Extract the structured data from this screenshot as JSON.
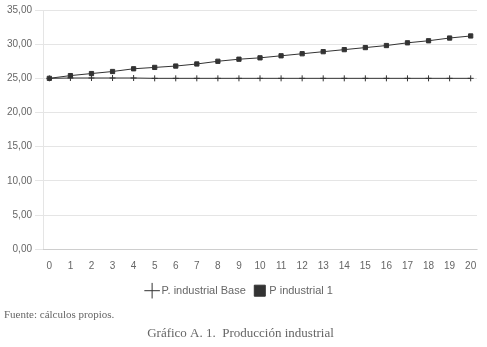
{
  "chart_data": {
    "type": "line",
    "title": "Gráfico A. 1.  Producción industrial",
    "annotations": [
      "Fuente: cálculos propios."
    ],
    "x": [
      0,
      1,
      2,
      3,
      4,
      5,
      6,
      7,
      8,
      9,
      10,
      11,
      12,
      13,
      14,
      15,
      16,
      17,
      18,
      19,
      20
    ],
    "series": [
      {
        "name": "P. industrial Base",
        "color": "#333333",
        "marker": "plus",
        "values": [
          25.0,
          25.05,
          25.05,
          25.05,
          25.05,
          25.0,
          25.0,
          25.0,
          25.0,
          25.0,
          25.0,
          25.0,
          25.0,
          25.0,
          25.0,
          25.0,
          25.0,
          25.0,
          25.0,
          25.0,
          25.0
        ]
      },
      {
        "name": "P industrial 1",
        "color": "#333333",
        "marker": "square",
        "values": [
          25.0,
          25.4,
          25.7,
          26.0,
          26.4,
          26.6,
          26.8,
          27.1,
          27.5,
          27.8,
          28.0,
          28.3,
          28.6,
          28.9,
          29.2,
          29.5,
          29.8,
          30.2,
          30.5,
          30.9,
          31.2
        ]
      }
    ],
    "xlim": [
      -0.3,
      20.3
    ],
    "xticks": [
      0,
      1,
      2,
      3,
      4,
      5,
      6,
      7,
      8,
      9,
      10,
      11,
      12,
      13,
      14,
      15,
      16,
      17,
      18,
      19,
      20
    ],
    "ylim": [
      0,
      35
    ],
    "yticks": [
      {
        "value": 0,
        "label": "0,00"
      },
      {
        "value": 5,
        "label": "5,00"
      },
      {
        "value": 10,
        "label": "10,00"
      },
      {
        "value": 15,
        "label": "15,00"
      },
      {
        "value": 20,
        "label": "20,00"
      },
      {
        "value": 25,
        "label": "25,00"
      },
      {
        "value": 30,
        "label": "30,00"
      },
      {
        "value": 35,
        "label": "35,00"
      }
    ],
    "grid": "y",
    "legend": "bottom"
  }
}
